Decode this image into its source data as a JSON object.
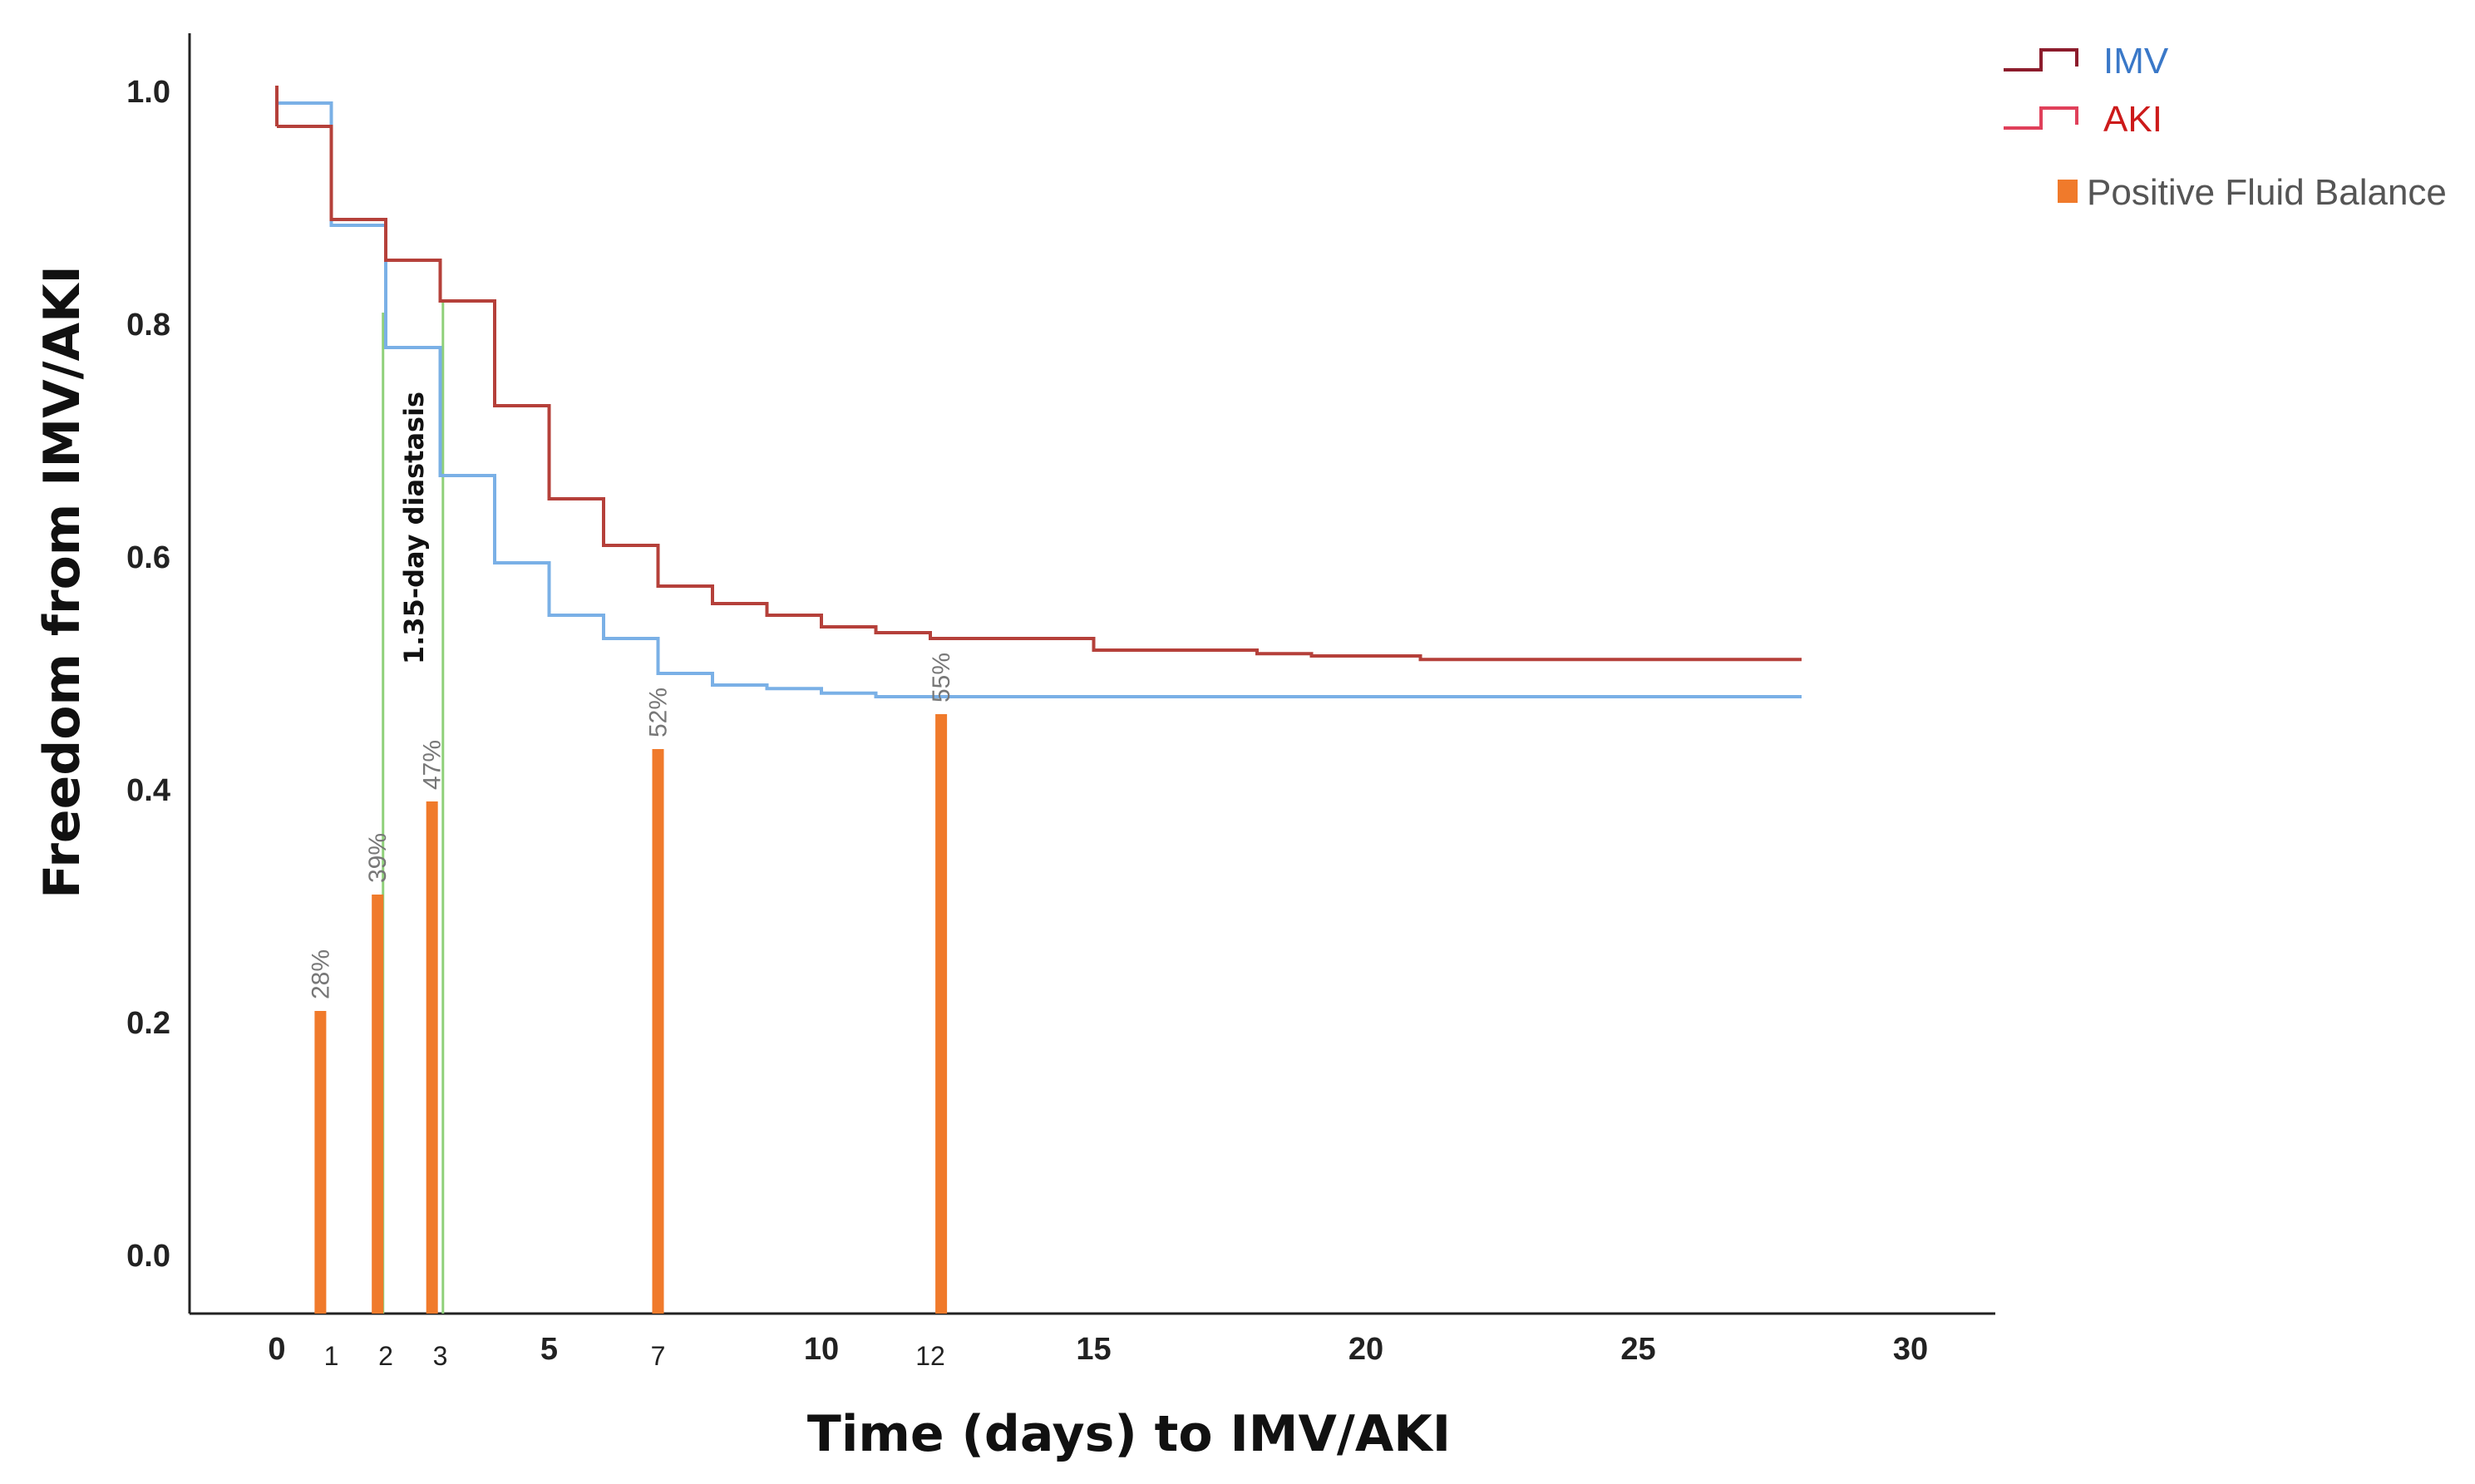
{
  "chart_data": {
    "type": "line",
    "title": "",
    "xlabel": "Time (days) to IMV/AKI",
    "ylabel": "Freedom from IMV/AKI",
    "xlim": [
      0,
      31
    ],
    "ylim": [
      -0.05,
      1.05
    ],
    "y_ticks": [
      "0.0",
      "0.2",
      "0.4",
      "0.6",
      "0.8",
      "1.0"
    ],
    "y_tick_values": [
      0.0,
      0.2,
      0.4,
      0.6,
      0.8,
      1.0
    ],
    "x_ticks_major": [
      {
        "value": 0,
        "label": "0"
      },
      {
        "value": 5,
        "label": "5"
      },
      {
        "value": 10,
        "label": "10"
      },
      {
        "value": 15,
        "label": "15"
      },
      {
        "value": 20,
        "label": "20"
      },
      {
        "value": 25,
        "label": "25"
      },
      {
        "value": 30,
        "label": "30"
      }
    ],
    "x_ticks_minor": [
      {
        "value": 1,
        "label": "1"
      },
      {
        "value": 2,
        "label": "2"
      },
      {
        "value": 3,
        "label": "3"
      },
      {
        "value": 7,
        "label": "7"
      },
      {
        "value": 12,
        "label": "12"
      }
    ],
    "series": [
      {
        "name": "IMV",
        "color": "#7ab0e6",
        "legend_color": "#8c1c2c",
        "label_color": "#3a78c8",
        "steps": [
          [
            0,
            0.99
          ],
          [
            1,
            0.885
          ],
          [
            2,
            0.78
          ],
          [
            3,
            0.67
          ],
          [
            4,
            0.595
          ],
          [
            5,
            0.55
          ],
          [
            6,
            0.53
          ],
          [
            7,
            0.5
          ],
          [
            8,
            0.49
          ],
          [
            9,
            0.487
          ],
          [
            10,
            0.483
          ],
          [
            11,
            0.48
          ],
          [
            28,
            0.48
          ]
        ]
      },
      {
        "name": "AKI",
        "color": "#b5403a",
        "legend_color": "#e0405a",
        "label_color": "#cc1a1a",
        "steps": [
          [
            0,
            0.97
          ],
          [
            1,
            0.89
          ],
          [
            2,
            0.855
          ],
          [
            3,
            0.82
          ],
          [
            4,
            0.73
          ],
          [
            5,
            0.65
          ],
          [
            6,
            0.61
          ],
          [
            7,
            0.575
          ],
          [
            8,
            0.56
          ],
          [
            9,
            0.55
          ],
          [
            10,
            0.54
          ],
          [
            11,
            0.535
          ],
          [
            12,
            0.53
          ],
          [
            15,
            0.52
          ],
          [
            18,
            0.517
          ],
          [
            19,
            0.515
          ],
          [
            21,
            0.512
          ],
          [
            28,
            0.512
          ]
        ]
      }
    ],
    "bars": {
      "name": "Positive Fluid Balance",
      "color": "#f07a2b",
      "points": [
        {
          "x": 0.8,
          "value": 0.21,
          "label": "28%"
        },
        {
          "x": 1.85,
          "value": 0.31,
          "label": "39%"
        },
        {
          "x": 2.85,
          "value": 0.39,
          "label": "47%"
        },
        {
          "x": 7,
          "value": 0.435,
          "label": "52%"
        },
        {
          "x": 12.2,
          "value": 0.465,
          "label": "55%"
        }
      ]
    },
    "annotation": {
      "text": "1.35-day diastasis",
      "x_start": 1.95,
      "x_end": 3.05,
      "color": "#8fd07a"
    },
    "legend_position": "top-right"
  }
}
